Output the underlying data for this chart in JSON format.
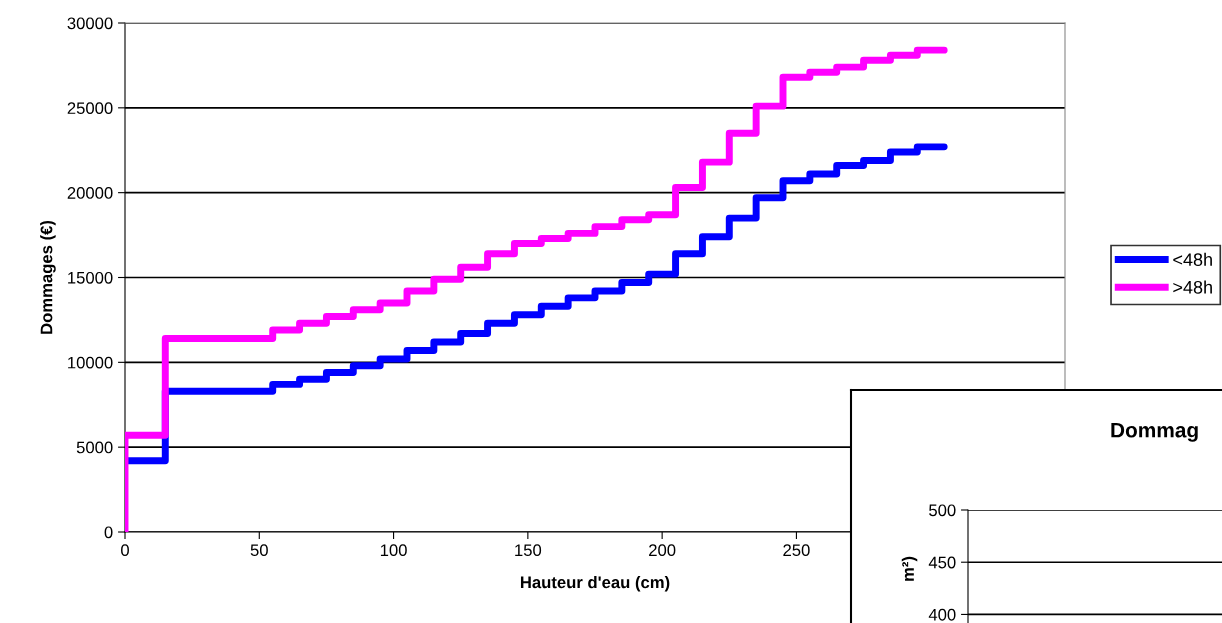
{
  "chart_data": [
    {
      "type": "step",
      "xlabel": "Hauteur d'eau (cm)",
      "ylabel": "Dommages (€)",
      "xlim": [
        0,
        350
      ],
      "xticks": [
        0,
        50,
        100,
        150,
        200,
        250
      ],
      "ylim": [
        0,
        30000
      ],
      "yticks": [
        0,
        5000,
        10000,
        15000,
        20000,
        25000,
        30000
      ],
      "grid": "y",
      "legend": "right",
      "line_style": "solid",
      "series": [
        {
          "name": "<48h",
          "color": "#0000ff",
          "x": [
            0,
            15,
            55,
            65,
            75,
            85,
            95,
            105,
            115,
            125,
            135,
            145,
            155,
            165,
            175,
            185,
            195,
            205,
            215,
            225,
            235,
            245,
            255,
            265,
            275,
            285,
            295,
            305
          ],
          "values": [
            4200,
            8300,
            8700,
            9000,
            9400,
            9800,
            10200,
            10700,
            11200,
            11700,
            12300,
            12800,
            13300,
            13800,
            14200,
            14700,
            15200,
            16400,
            17400,
            18500,
            19700,
            20700,
            21100,
            21600,
            21900,
            22400,
            22700,
            22700
          ]
        },
        {
          "name": ">48h",
          "color": "#ff00ff",
          "x": [
            0,
            0,
            15,
            55,
            65,
            75,
            85,
            95,
            105,
            115,
            125,
            135,
            145,
            155,
            165,
            175,
            185,
            195,
            205,
            215,
            225,
            235,
            245,
            255,
            265,
            275,
            285,
            295,
            305
          ],
          "values": [
            0,
            5700,
            11400,
            11900,
            12300,
            12700,
            13100,
            13500,
            14200,
            14900,
            15600,
            16400,
            17000,
            17300,
            17600,
            18000,
            18400,
            18700,
            20300,
            21800,
            23500,
            25100,
            26800,
            27100,
            27400,
            27800,
            28100,
            28400,
            28400
          ]
        }
      ]
    },
    {
      "type": "other",
      "title": "Dommag",
      "ylabel": "m²)",
      "annotations": [
        "500",
        "450",
        "400"
      ]
    }
  ]
}
